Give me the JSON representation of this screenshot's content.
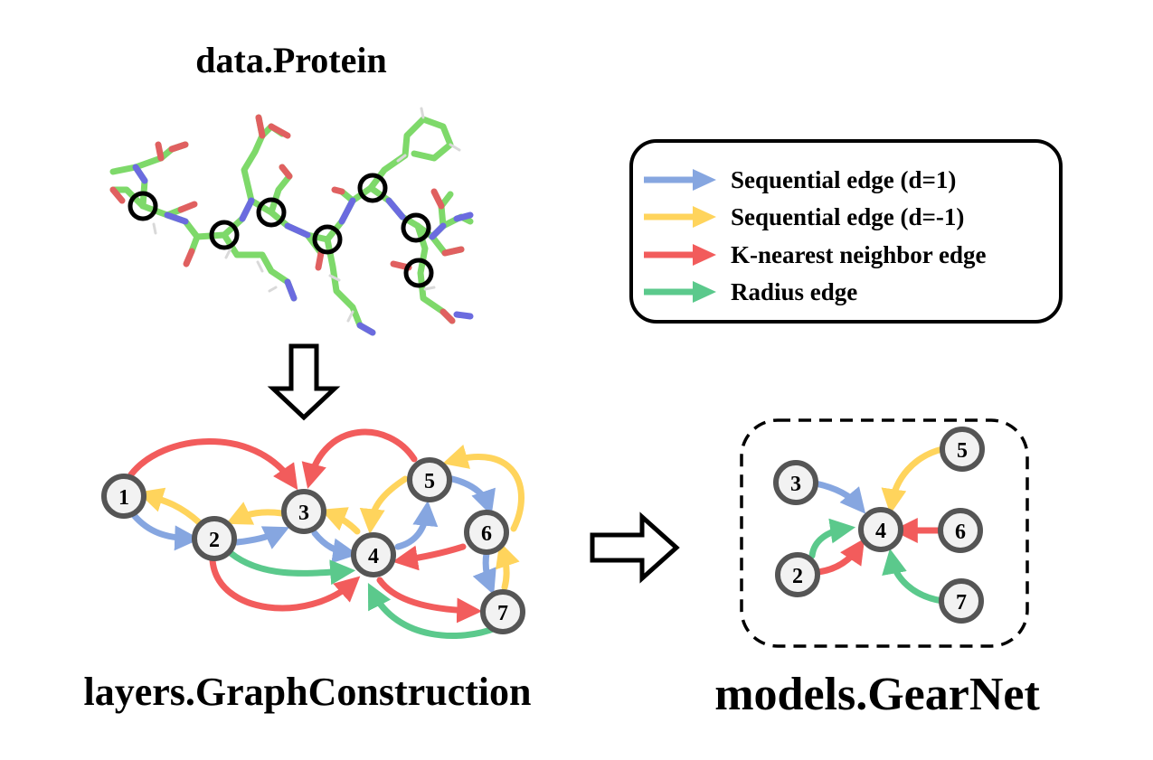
{
  "titles": {
    "protein": "data.Protein",
    "graph_construction": "layers.GraphConstruction",
    "gearnet": "models.GearNet"
  },
  "colors": {
    "sequential_fwd": "#86a6e0",
    "sequential_bwd": "#ffd45c",
    "knn": "#f25c5c",
    "radius": "#5bc98c",
    "node_stroke": "#555555",
    "node_fill": "#f2f2f2",
    "molecule_carbon": "#7ed96a",
    "molecule_nitrogen": "#6b6bdf",
    "molecule_oxygen": "#e06060"
  },
  "legend": {
    "items": [
      {
        "label": "Sequential edge (d=1)",
        "color": "#86a6e0"
      },
      {
        "label": "Sequential edge (d=-1)",
        "color": "#ffd45c"
      },
      {
        "label": "K-nearest neighbor edge",
        "color": "#f25c5c"
      },
      {
        "label": "Radius edge",
        "color": "#5bc98c"
      }
    ]
  },
  "graph": {
    "nodes": [
      "1",
      "2",
      "3",
      "4",
      "5",
      "6",
      "7"
    ],
    "edges": [
      {
        "from": "1",
        "to": "2",
        "type": "sequential_fwd"
      },
      {
        "from": "2",
        "to": "1",
        "type": "sequential_bwd"
      },
      {
        "from": "2",
        "to": "3",
        "type": "sequential_fwd"
      },
      {
        "from": "3",
        "to": "2",
        "type": "sequential_bwd"
      },
      {
        "from": "3",
        "to": "4",
        "type": "sequential_fwd"
      },
      {
        "from": "4",
        "to": "3",
        "type": "sequential_bwd"
      },
      {
        "from": "4",
        "to": "5",
        "type": "sequential_fwd"
      },
      {
        "from": "5",
        "to": "4",
        "type": "sequential_bwd"
      },
      {
        "from": "5",
        "to": "6",
        "type": "sequential_fwd"
      },
      {
        "from": "6",
        "to": "5",
        "type": "sequential_bwd"
      },
      {
        "from": "6",
        "to": "7",
        "type": "sequential_fwd"
      },
      {
        "from": "7",
        "to": "6",
        "type": "sequential_bwd"
      },
      {
        "from": "1",
        "to": "3",
        "type": "knn"
      },
      {
        "from": "5",
        "to": "3",
        "type": "knn"
      },
      {
        "from": "2",
        "to": "4",
        "type": "knn"
      },
      {
        "from": "6",
        "to": "4",
        "type": "knn"
      },
      {
        "from": "4",
        "to": "7",
        "type": "knn"
      },
      {
        "from": "2",
        "to": "4",
        "type": "radius"
      },
      {
        "from": "7",
        "to": "4",
        "type": "radius"
      }
    ]
  },
  "gearnet": {
    "nodes": [
      "3",
      "4",
      "5",
      "6",
      "2",
      "7"
    ],
    "edges": [
      {
        "from": "3",
        "to": "4",
        "type": "sequential_fwd"
      },
      {
        "from": "5",
        "to": "4",
        "type": "sequential_bwd"
      },
      {
        "from": "6",
        "to": "4",
        "type": "knn"
      },
      {
        "from": "2",
        "to": "4",
        "type": "knn"
      },
      {
        "from": "2",
        "to": "4",
        "type": "radius"
      },
      {
        "from": "7",
        "to": "4",
        "type": "radius"
      }
    ]
  }
}
